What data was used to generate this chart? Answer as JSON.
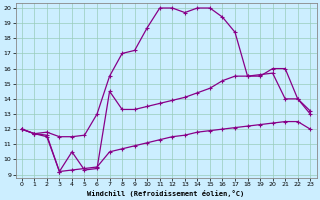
{
  "xlabel": "Windchill (Refroidissement éolien,°C)",
  "bg_color": "#cceeff",
  "grid_color": "#99ccbb",
  "line_color": "#880088",
  "xlim": [
    -0.5,
    23.5
  ],
  "ylim": [
    8.8,
    20.3
  ],
  "xticks": [
    0,
    1,
    2,
    3,
    4,
    5,
    6,
    7,
    8,
    9,
    10,
    11,
    12,
    13,
    14,
    15,
    16,
    17,
    18,
    19,
    20,
    21,
    22,
    23
  ],
  "yticks": [
    9,
    10,
    11,
    12,
    13,
    14,
    15,
    16,
    17,
    18,
    19,
    20
  ],
  "line_top_x": [
    0,
    1,
    2,
    3,
    4,
    5,
    6,
    7,
    8,
    9,
    10,
    11,
    12,
    13,
    14,
    15,
    16,
    17,
    18,
    19,
    20,
    21,
    22,
    23
  ],
  "line_top_y": [
    12.0,
    11.7,
    11.8,
    11.5,
    11.5,
    11.6,
    13.0,
    15.5,
    17.0,
    17.2,
    18.7,
    20.0,
    20.0,
    19.7,
    20.0,
    20.0,
    19.4,
    18.4,
    15.5,
    15.5,
    16.0,
    16.0,
    14.0,
    13.0
  ],
  "line_mid_x": [
    0,
    1,
    2,
    3,
    4,
    5,
    6,
    7,
    8,
    9,
    10,
    11,
    12,
    13,
    14,
    15,
    16,
    17,
    18,
    19,
    20,
    21,
    22,
    23
  ],
  "line_mid_y": [
    12.0,
    11.7,
    11.6,
    9.2,
    10.5,
    9.3,
    9.4,
    14.5,
    13.3,
    13.3,
    13.5,
    13.7,
    13.9,
    14.1,
    14.4,
    14.7,
    15.2,
    15.5,
    15.5,
    15.6,
    15.7,
    14.0,
    14.0,
    13.2
  ],
  "line_bot_x": [
    0,
    1,
    2,
    3,
    4,
    5,
    6,
    7,
    8,
    9,
    10,
    11,
    12,
    13,
    14,
    15,
    16,
    17,
    18,
    19,
    20,
    21,
    22,
    23
  ],
  "line_bot_y": [
    12.0,
    11.7,
    11.5,
    9.2,
    9.3,
    9.4,
    9.5,
    10.5,
    10.7,
    10.9,
    11.1,
    11.3,
    11.5,
    11.6,
    11.8,
    11.9,
    12.0,
    12.1,
    12.2,
    12.3,
    12.4,
    12.5,
    12.5,
    12.0
  ],
  "marker": "+"
}
